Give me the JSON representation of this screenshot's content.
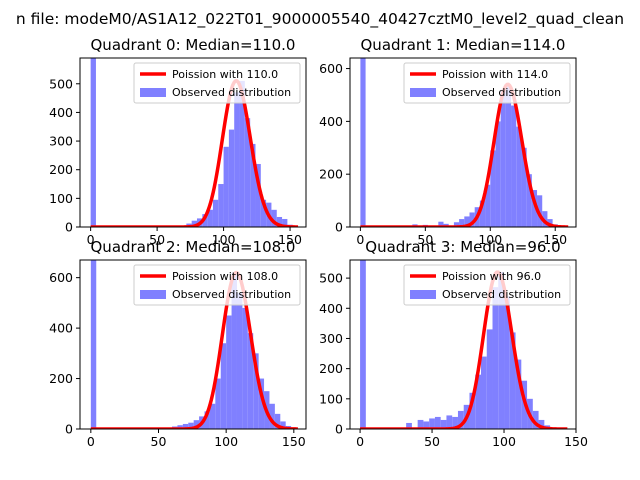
{
  "figure": {
    "suptitle": "n file: modeM0/AS1A12_022T01_9000005540_40427cztM0_level2_quad_clean"
  },
  "chart_data": [
    {
      "type": "bar",
      "title": "Quadrant 0: Median=110.0",
      "median": 110.0,
      "xlim": [
        -8,
        162
      ],
      "ylim": [
        0,
        590
      ],
      "xticks": [
        0,
        50,
        100,
        150
      ],
      "yticks": [
        0,
        100,
        200,
        300,
        400,
        500
      ],
      "legend": [
        "Poission with 110.0",
        "Observed distribution"
      ],
      "legend_position": "upper right",
      "hist_bins": [
        [
          0,
          600
        ],
        [
          68,
          5
        ],
        [
          72,
          12
        ],
        [
          76,
          22
        ],
        [
          80,
          30
        ],
        [
          84,
          45
        ],
        [
          88,
          60
        ],
        [
          92,
          95
        ],
        [
          96,
          150
        ],
        [
          100,
          280
        ],
        [
          104,
          340
        ],
        [
          108,
          470
        ],
        [
          112,
          510
        ],
        [
          116,
          380
        ],
        [
          120,
          290
        ],
        [
          124,
          220
        ],
        [
          128,
          95
        ],
        [
          132,
          85
        ],
        [
          136,
          60
        ],
        [
          140,
          35
        ],
        [
          144,
          28
        ],
        [
          148,
          8
        ],
        [
          152,
          5
        ]
      ]
    },
    {
      "type": "bar",
      "title": "Quadrant 1: Median=114.0",
      "median": 114.0,
      "xlim": [
        -8,
        166
      ],
      "ylim": [
        0,
        640
      ],
      "xticks": [
        0,
        50,
        100,
        150
      ],
      "yticks": [
        0,
        200,
        400,
        600
      ],
      "legend": [
        "Poission with 114.0",
        "Observed distribution"
      ],
      "legend_position": "upper right",
      "hist_bins": [
        [
          0,
          650
        ],
        [
          40,
          10
        ],
        [
          48,
          8
        ],
        [
          60,
          20
        ],
        [
          64,
          12
        ],
        [
          72,
          18
        ],
        [
          76,
          30
        ],
        [
          80,
          40
        ],
        [
          84,
          55
        ],
        [
          88,
          75
        ],
        [
          92,
          100
        ],
        [
          96,
          160
        ],
        [
          100,
          290
        ],
        [
          104,
          400
        ],
        [
          108,
          520
        ],
        [
          112,
          540
        ],
        [
          116,
          460
        ],
        [
          120,
          380
        ],
        [
          124,
          300
        ],
        [
          128,
          200
        ],
        [
          132,
          140
        ],
        [
          136,
          120
        ],
        [
          140,
          60
        ],
        [
          144,
          30
        ],
        [
          148,
          10
        ]
      ]
    },
    {
      "type": "bar",
      "title": "Quadrant 2: Median=108.0",
      "median": 108.0,
      "xlim": [
        -8,
        159
      ],
      "ylim": [
        0,
        670
      ],
      "xticks": [
        0,
        50,
        100,
        150
      ],
      "yticks": [
        0,
        200,
        400,
        600
      ],
      "legend": [
        "Poission with 108.0",
        "Observed distribution"
      ],
      "legend_position": "upper right",
      "hist_bins": [
        [
          0,
          680
        ],
        [
          60,
          10
        ],
        [
          64,
          15
        ],
        [
          68,
          20
        ],
        [
          72,
          25
        ],
        [
          76,
          35
        ],
        [
          80,
          50
        ],
        [
          84,
          70
        ],
        [
          88,
          100
        ],
        [
          92,
          200
        ],
        [
          96,
          340
        ],
        [
          100,
          450
        ],
        [
          104,
          620
        ],
        [
          108,
          540
        ],
        [
          112,
          480
        ],
        [
          116,
          380
        ],
        [
          120,
          300
        ],
        [
          124,
          200
        ],
        [
          128,
          150
        ],
        [
          132,
          100
        ],
        [
          136,
          60
        ],
        [
          140,
          30
        ],
        [
          144,
          12
        ],
        [
          148,
          6
        ]
      ]
    },
    {
      "type": "bar",
      "title": "Quadrant 3: Median=96.0",
      "median": 96.0,
      "xlim": [
        -7,
        150
      ],
      "ylim": [
        0,
        560
      ],
      "xticks": [
        0,
        50,
        100,
        150
      ],
      "yticks": [
        0,
        100,
        200,
        300,
        400,
        500
      ],
      "legend": [
        "Poission with 96.0",
        "Observed distribution"
      ],
      "legend_position": "upper right",
      "hist_bins": [
        [
          0,
          560
        ],
        [
          32,
          20
        ],
        [
          40,
          30
        ],
        [
          44,
          25
        ],
        [
          48,
          35
        ],
        [
          52,
          40
        ],
        [
          56,
          30
        ],
        [
          60,
          45
        ],
        [
          64,
          40
        ],
        [
          68,
          60
        ],
        [
          72,
          80
        ],
        [
          76,
          120
        ],
        [
          80,
          180
        ],
        [
          84,
          240
        ],
        [
          88,
          330
        ],
        [
          92,
          470
        ],
        [
          96,
          520
        ],
        [
          100,
          440
        ],
        [
          104,
          320
        ],
        [
          108,
          230
        ],
        [
          112,
          160
        ],
        [
          116,
          100
        ],
        [
          120,
          60
        ],
        [
          124,
          30
        ],
        [
          128,
          12
        ]
      ]
    }
  ],
  "colors": {
    "hist": "#8080ff",
    "poisson": "#ff0000",
    "axes": "#000000"
  }
}
